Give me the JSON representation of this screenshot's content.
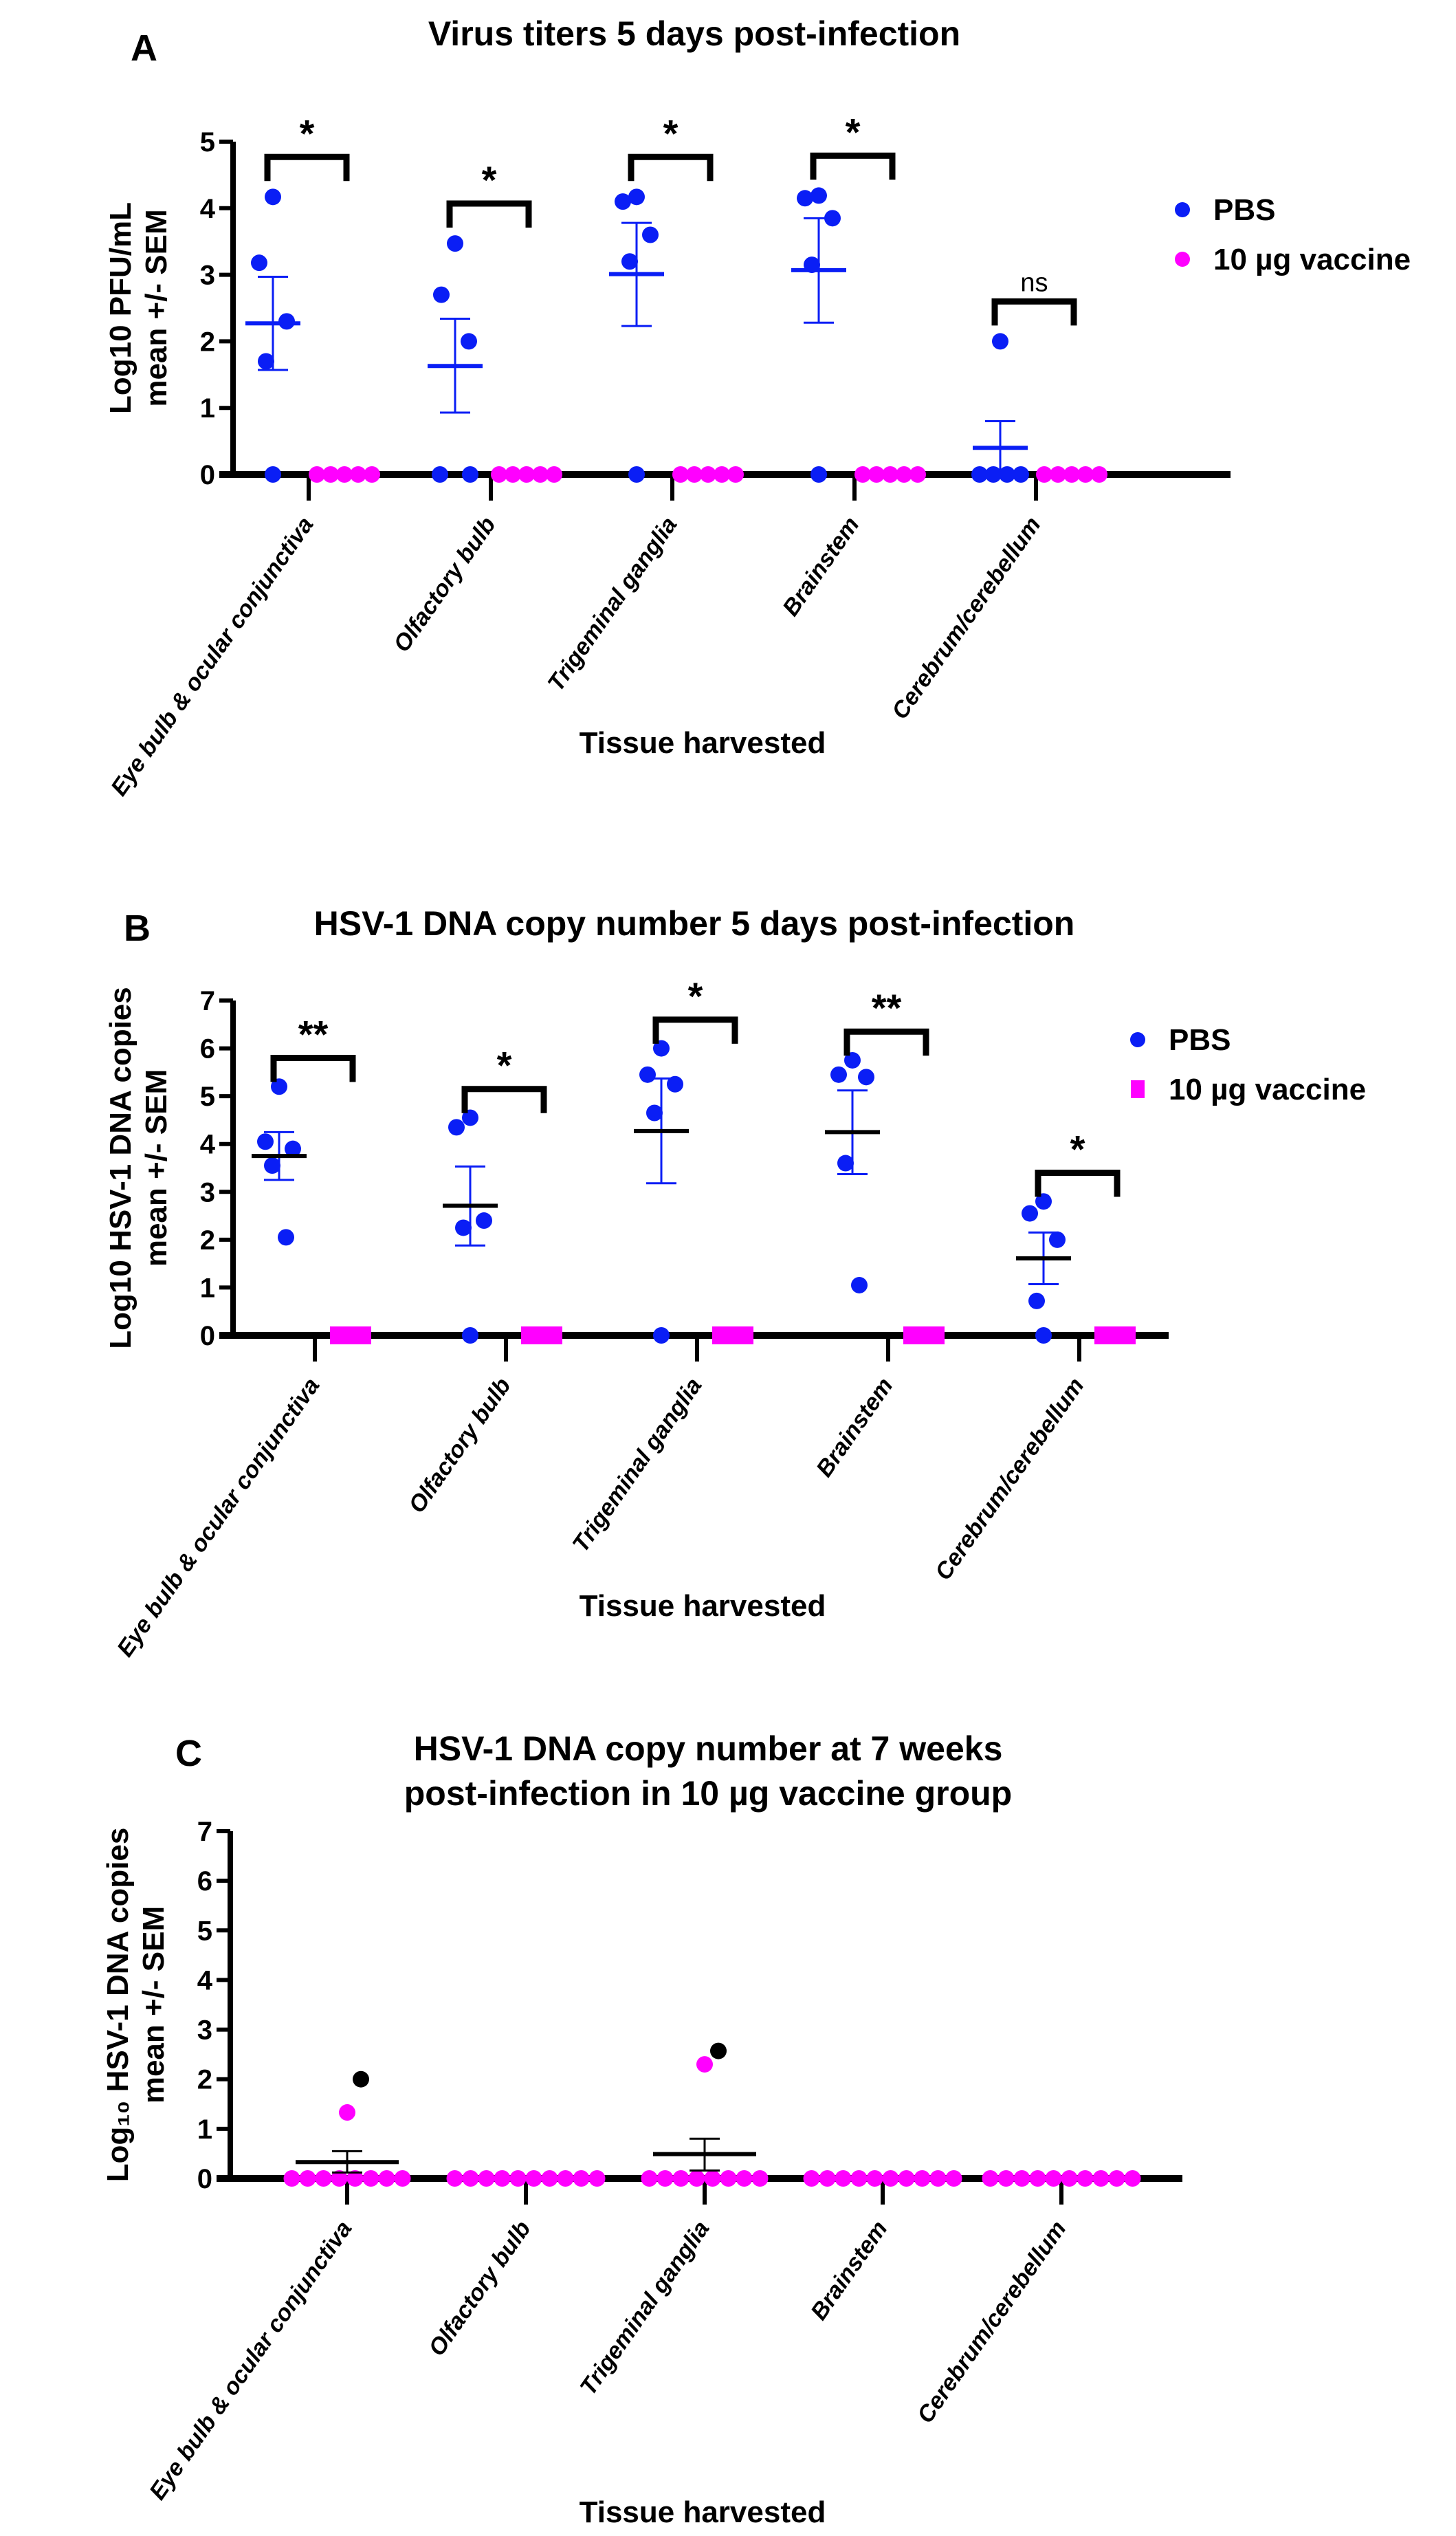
{
  "chart_data": [
    {
      "panel": "A",
      "type": "scatter",
      "title": "Virus titers 5 days post-infection",
      "xlabel": "Tissue harvested",
      "ylabel": [
        "Log10 PFU/mL",
        "mean +/- SEM"
      ],
      "ylim": [
        0,
        5
      ],
      "yticks": [
        0,
        1,
        2,
        3,
        4,
        5
      ],
      "categories": [
        "Eye bulb & ocular conjunctiva",
        "Olfactory bulb",
        "Trigeminal ganglia",
        "Brainstem",
        "Cerebrum/cerebellum"
      ],
      "legend_position": "right",
      "series": [
        {
          "name": "PBS",
          "color": "#0a1ef5",
          "marker": "circle",
          "values": [
            [
              4.17,
              3.18,
              2.3,
              1.7,
              0
            ],
            [
              3.47,
              2.7,
              2.0,
              0,
              0
            ],
            [
              4.17,
              4.1,
              3.6,
              3.2,
              0
            ],
            [
              4.19,
              4.15,
              3.85,
              3.15,
              0
            ],
            [
              2.0,
              0,
              0,
              0,
              0
            ]
          ],
          "mean": [
            2.27,
            1.63,
            3.01,
            3.07,
            0.4
          ],
          "sem_upper": [
            2.97,
            2.34,
            3.78,
            3.85,
            0.8
          ],
          "sem_lower": [
            1.57,
            0.93,
            2.23,
            2.28,
            0
          ],
          "mean_color": "#0a1ef5"
        },
        {
          "name": "10 µg vaccine",
          "color": "#ff00ff",
          "marker": "circle",
          "values": [
            [
              0,
              0,
              0,
              0,
              0
            ],
            [
              0,
              0,
              0,
              0,
              0
            ],
            [
              0,
              0,
              0,
              0,
              0
            ],
            [
              0,
              0,
              0,
              0,
              0
            ],
            [
              0,
              0,
              0,
              0,
              0
            ]
          ]
        }
      ],
      "significance": [
        "*",
        "*",
        "*",
        "*",
        "ns"
      ]
    },
    {
      "panel": "B",
      "type": "scatter",
      "title": "HSV-1 DNA copy number 5 days post-infection",
      "xlabel": "Tissue harvested",
      "ylabel": [
        "Log10 HSV-1 DNA copies",
        "mean +/- SEM"
      ],
      "ylim": [
        0,
        7
      ],
      "yticks": [
        0,
        1,
        2,
        3,
        4,
        5,
        6,
        7
      ],
      "categories": [
        "Eye bulb & ocular conjunctiva",
        "Olfactory bulb",
        "Trigeminal ganglia",
        "Brainstem",
        "Cerebrum/cerebellum"
      ],
      "legend_position": "right",
      "series": [
        {
          "name": "PBS",
          "color": "#0a1ef5",
          "marker": "circle",
          "values": [
            [
              5.2,
              4.05,
              3.9,
              3.55,
              2.05
            ],
            [
              4.55,
              4.35,
              2.4,
              2.25,
              0
            ],
            [
              6.0,
              5.45,
              5.25,
              4.65,
              0
            ],
            [
              5.75,
              5.45,
              5.4,
              3.6,
              1.05
            ],
            [
              2.8,
              2.55,
              2.0,
              0.72,
              0
            ]
          ],
          "mean": [
            3.75,
            2.71,
            4.27,
            4.25,
            1.61
          ],
          "sem_upper": [
            4.25,
            3.53,
            5.37,
            5.12,
            2.15
          ],
          "sem_lower": [
            3.25,
            1.88,
            3.18,
            3.37,
            1.07
          ],
          "mean_color": "#000000"
        },
        {
          "name": "10 µg vaccine",
          "color": "#ff00ff",
          "marker": "square",
          "values": [
            [
              0,
              0,
              0,
              0,
              0
            ],
            [
              0,
              0,
              0,
              0,
              0
            ],
            [
              0,
              0,
              0,
              0,
              0
            ],
            [
              0,
              0,
              0,
              0,
              0
            ],
            [
              0,
              0,
              0,
              0,
              0
            ]
          ]
        }
      ],
      "significance": [
        "**",
        "*",
        "*",
        "**",
        "*"
      ]
    },
    {
      "panel": "C",
      "type": "scatter",
      "title": [
        "HSV-1 DNA copy number at 7 weeks",
        "post-infection in 10 µg vaccine group"
      ],
      "xlabel": "Tissue harvested",
      "ylabel": [
        "Log₁₀ HSV-1 DNA copies",
        "mean +/- SEM"
      ],
      "ylim": [
        0,
        7
      ],
      "yticks": [
        0,
        1,
        2,
        3,
        4,
        5,
        6,
        7
      ],
      "categories": [
        "Eye bulb & ocular conjunctiva",
        "Olfactory bulb",
        "Trigeminal ganglia",
        "Brainstem",
        "Cerebrum/cerebellum"
      ],
      "series": [
        {
          "color": "#ff00ff",
          "highlight_color": "#000000",
          "marker": "circle",
          "values": [
            [
              1.33,
              0,
              0,
              0,
              0,
              0,
              0,
              0,
              0
            ],
            [
              0,
              0,
              0,
              0,
              0,
              0,
              0,
              0,
              0,
              0
            ],
            [
              2.3,
              0,
              0,
              0,
              0,
              0,
              0,
              0,
              0
            ],
            [
              0,
              0,
              0,
              0,
              0,
              0,
              0,
              0,
              0,
              0
            ],
            [
              0,
              0,
              0,
              0,
              0,
              0,
              0,
              0,
              0,
              0
            ]
          ],
          "highlighted_values": [
            [
              2.0
            ],
            [],
            [
              2.57
            ],
            [],
            []
          ],
          "mean": [
            0.33,
            0,
            0.49,
            0,
            0
          ],
          "sem_upper": [
            0.55,
            0,
            0.8,
            0,
            0
          ],
          "sem_lower": [
            0.12,
            0,
            0.16,
            0,
            0
          ],
          "mean_color": "#000000"
        }
      ]
    }
  ]
}
